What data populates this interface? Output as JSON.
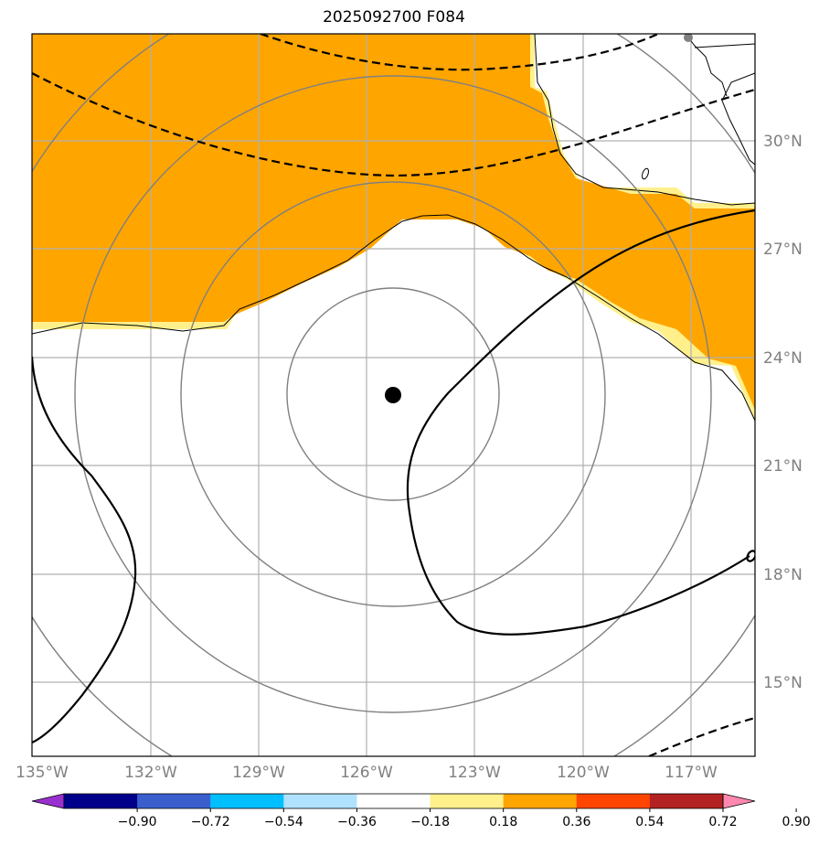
{
  "title": "2025092700 F084",
  "lat_labels": [
    "30°N",
    "27°N",
    "24°N",
    "21°N",
    "18°N",
    "15°N"
  ],
  "lon_labels": [
    "135°W",
    "132°W",
    "129°W",
    "126°W",
    "123°W",
    "120°W",
    "117°W"
  ],
  "colorbar": {
    "ticks": [
      "−0.90",
      "−0.72",
      "−0.54",
      "−0.36",
      "−0.18",
      "0.18",
      "0.36",
      "0.54",
      "0.72",
      "0.90"
    ],
    "colors": [
      "#9b30d0",
      "#00008b",
      "#3a5fcd",
      "#00bfff",
      "#b0e2ff",
      "#ffffff",
      "#fff08c",
      "#ffa500",
      "#ff4500",
      "#b22222",
      "#ff88b0"
    ]
  },
  "map": {
    "lon_range": [
      -135,
      -115
    ],
    "lat_range": [
      13,
      33
    ],
    "storm_center": {
      "lon": -125.8,
      "lat": 23.0
    },
    "range_ring_color": "#808080",
    "gridline_color": "#b0b0b0",
    "fill_color": "#ffa500",
    "fill_edge_color": "#fff08c"
  }
}
